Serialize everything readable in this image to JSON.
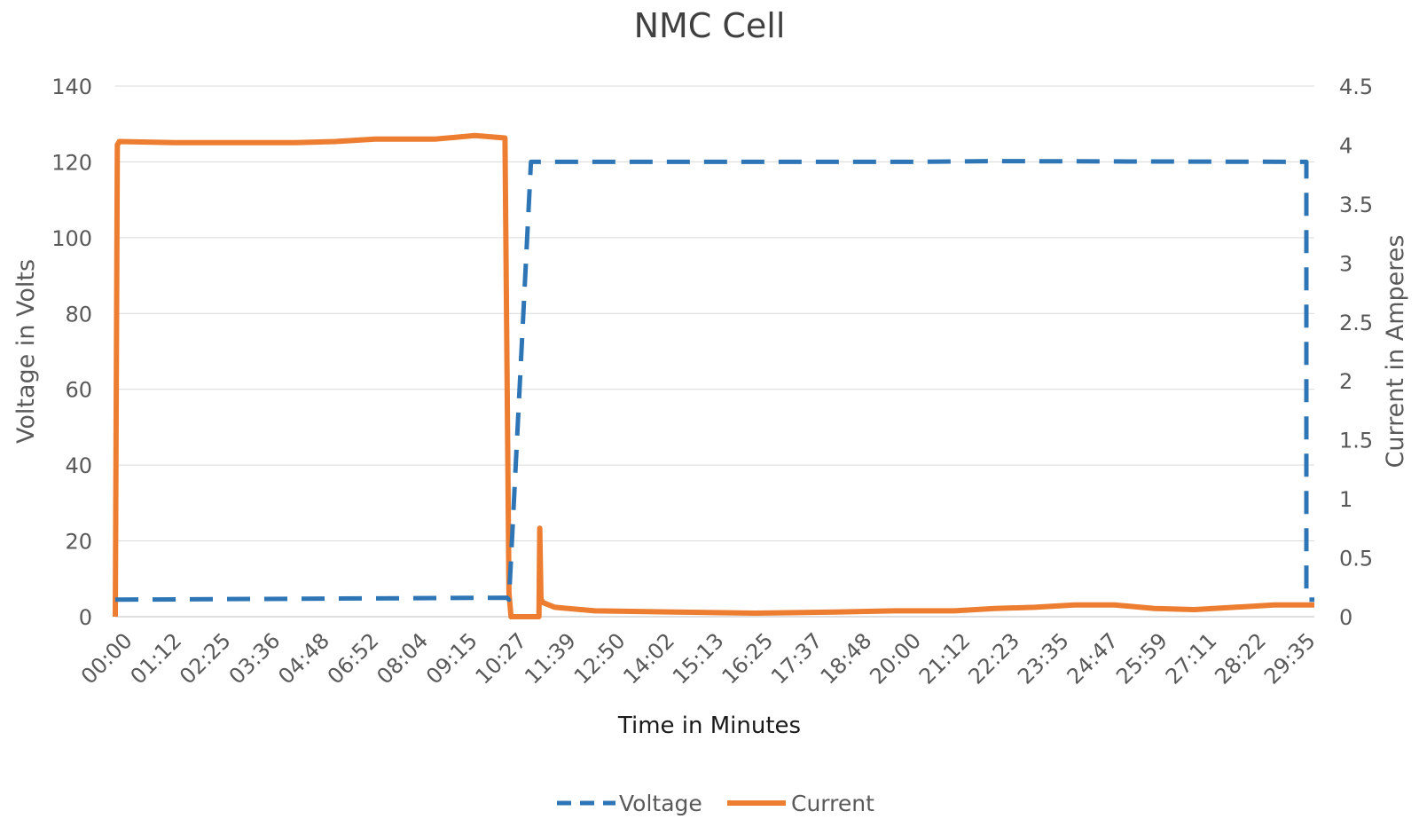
{
  "chart_data": {
    "type": "line",
    "title": "NMC Cell",
    "xlabel": "Time in Minutes",
    "ylabel": "Voltage in Volts",
    "y2label": "Current in Amperes",
    "ylim": [
      0,
      140
    ],
    "y2lim": [
      0,
      4.5
    ],
    "yticks": [
      "0",
      "20",
      "40",
      "60",
      "80",
      "100",
      "120",
      "140"
    ],
    "y2ticks": [
      "0",
      "0.5",
      "1",
      "1.5",
      "2",
      "2.5",
      "3",
      "3.5",
      "4",
      "4.5"
    ],
    "xlim": [
      0,
      30
    ],
    "categories": [
      "00:00",
      "01:12",
      "02:25",
      "03:36",
      "04:48",
      "06:52",
      "08:04",
      "09:15",
      "10:27",
      "11:39",
      "12:50",
      "14:02",
      "15:13",
      "16:25",
      "17:37",
      "18:48",
      "20:00",
      "21:12",
      "22:23",
      "23:35",
      "24:47",
      "25:59",
      "27:11",
      "28:22",
      "29:35"
    ],
    "grid": true,
    "legend_position": "bottom",
    "series": [
      {
        "name": "Voltage",
        "axis": "left",
        "style": "dashed",
        "color": "#2E75B6",
        "x": [
          0,
          9.8,
          9.85,
          10.4,
          20.0,
          22.0,
          29.8,
          29.8,
          30.0
        ],
        "values": [
          4.5,
          5.0,
          4.5,
          120,
          120,
          120.2,
          120,
          4.5,
          4.5
        ]
      },
      {
        "name": "Current",
        "axis": "right",
        "style": "solid",
        "color": "#ED7D31",
        "x": [
          0,
          0.05,
          0.1,
          1.5,
          3.0,
          4.5,
          5.5,
          6.5,
          8.0,
          9.0,
          9.75,
          9.85,
          9.9,
          10.0,
          10.6,
          10.62,
          10.65,
          10.7,
          11.0,
          12.0,
          14.0,
          16.0,
          18.0,
          19.5,
          21.0,
          22.0,
          23.0,
          24.0,
          25.0,
          26.0,
          27.0,
          28.0,
          29.0,
          30.0
        ],
        "values": [
          0,
          4.0,
          4.03,
          4.02,
          4.02,
          4.02,
          4.03,
          4.05,
          4.05,
          4.08,
          4.06,
          0.2,
          0.0,
          0.0,
          0.0,
          0.75,
          0.15,
          0.12,
          0.08,
          0.05,
          0.04,
          0.03,
          0.04,
          0.05,
          0.05,
          0.07,
          0.08,
          0.1,
          0.1,
          0.07,
          0.06,
          0.08,
          0.1,
          0.1
        ]
      }
    ]
  }
}
